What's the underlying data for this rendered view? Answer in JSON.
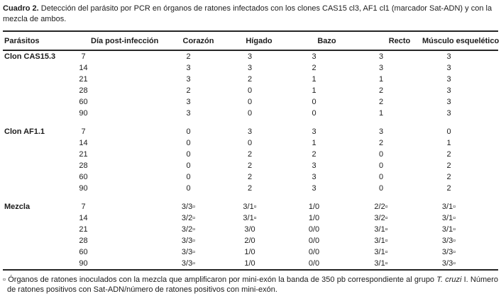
{
  "caption": {
    "label": "Cuadro 2.",
    "text": "Detección del parásito por PCR en órganos de ratones infectados con los clones CAS15 cl3, AF1 cl1 (marcador Sat-ADN) y con la mezcla de ambos."
  },
  "table": {
    "columns": [
      "Parásitos",
      "Día post-infección",
      "Corazón",
      "Hígado",
      "Bazo",
      "Recto",
      "Músculo esquelético"
    ],
    "blocks": [
      {
        "label": "Clon CAS15.3",
        "rows": [
          [
            "7",
            "2",
            "3",
            "3",
            "3",
            "3"
          ],
          [
            "14",
            "3",
            "3",
            "2",
            "3",
            "3"
          ],
          [
            "21",
            "3",
            "2",
            "1",
            "1",
            "3"
          ],
          [
            "28",
            "2",
            "0",
            "1",
            "2",
            "3"
          ],
          [
            "60",
            "3",
            "0",
            "0",
            "2",
            "3"
          ],
          [
            "90",
            "3",
            "0",
            "0",
            "1",
            "3"
          ]
        ]
      },
      {
        "label": "Clon AF1.1",
        "rows": [
          [
            "7",
            "0",
            "3",
            "3",
            "3",
            "0"
          ],
          [
            "14",
            "0",
            "0",
            "1",
            "2",
            "1"
          ],
          [
            "21",
            "0",
            "2",
            "2",
            "0",
            "2"
          ],
          [
            "28",
            "0",
            "2",
            "3",
            "0",
            "2"
          ],
          [
            "60",
            "0",
            "2",
            "3",
            "0",
            "2"
          ],
          [
            "90",
            "0",
            "2",
            "3",
            "0",
            "2"
          ]
        ]
      },
      {
        "label": "Mezcla",
        "rows": [
          [
            "7",
            "3/3▫",
            "3/1▫",
            "1/0",
            "2/2▫",
            "3/1▫"
          ],
          [
            "14",
            "3/2▫",
            "3/1▫",
            "1/0",
            "3/2▫",
            "3/1▫"
          ],
          [
            "21",
            "3/2▫",
            "3/0",
            "0/0",
            "3/1▫",
            "3/1▫"
          ],
          [
            "28",
            "3/3▫",
            "2/0",
            "0/0",
            "3/1▫",
            "3/3▫"
          ],
          [
            "60",
            "3/3▫",
            "1/0",
            "0/0",
            "3/1▫",
            "3/3▫"
          ],
          [
            "90",
            "3/3▫",
            "1/0",
            "0/0",
            "3/1▫",
            "3/3▫"
          ]
        ]
      }
    ]
  },
  "footnote": {
    "marker": "▫",
    "text1": "Órganos de ratones inoculados con la mezcla que amplificaron por mini-exón la banda de 350 pb correspondiente al grupo",
    "italic": "T. cruzi",
    "text2": "I. Número de ratones positivos con Sat-ADN/número de ratones positivos con mini-exón."
  }
}
